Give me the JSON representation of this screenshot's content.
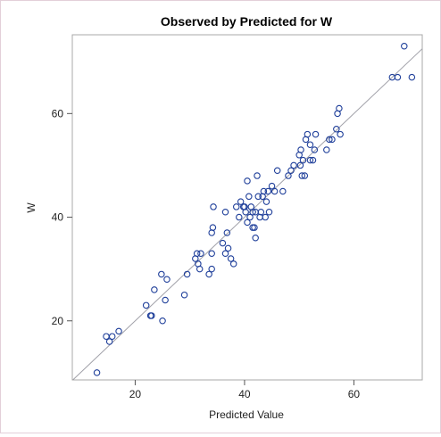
{
  "chart_data": {
    "type": "scatter",
    "title": "Observed by Predicted for W",
    "xlabel": "Predicted Value",
    "ylabel": "W",
    "xlim": [
      8.5,
      72.5
    ],
    "ylim": [
      8.6,
      75.2
    ],
    "xticks": [
      20,
      40,
      60
    ],
    "yticks": [
      20,
      40,
      60
    ],
    "reference_line": "y = x",
    "grid": false,
    "colors": {
      "marker": "#1f3f9a",
      "line": "#a0a0a8",
      "frame": "#a8a8a8"
    },
    "points": [
      [
        13,
        10
      ],
      [
        14.7,
        17
      ],
      [
        15.3,
        16
      ],
      [
        15.8,
        17
      ],
      [
        17,
        18
      ],
      [
        22,
        23
      ],
      [
        22.8,
        21
      ],
      [
        23,
        21
      ],
      [
        23.5,
        26
      ],
      [
        24.8,
        29
      ],
      [
        25,
        20
      ],
      [
        25.5,
        24
      ],
      [
        25.8,
        28
      ],
      [
        29,
        25
      ],
      [
        29.5,
        29
      ],
      [
        31,
        32
      ],
      [
        31.3,
        33
      ],
      [
        31.5,
        31
      ],
      [
        31.8,
        30
      ],
      [
        32,
        33
      ],
      [
        33.5,
        29
      ],
      [
        34,
        30
      ],
      [
        34,
        33
      ],
      [
        34,
        37
      ],
      [
        34.2,
        38
      ],
      [
        34.3,
        42
      ],
      [
        36,
        35
      ],
      [
        36.5,
        33
      ],
      [
        36.5,
        41
      ],
      [
        36.8,
        37
      ],
      [
        37,
        34
      ],
      [
        37.5,
        32
      ],
      [
        38,
        31
      ],
      [
        38.5,
        42
      ],
      [
        39,
        40
      ],
      [
        39.3,
        43
      ],
      [
        39.8,
        42
      ],
      [
        40,
        42
      ],
      [
        40.2,
        41
      ],
      [
        40.5,
        39
      ],
      [
        40.5,
        47
      ],
      [
        40.8,
        44
      ],
      [
        41,
        40
      ],
      [
        41.2,
        42
      ],
      [
        41.5,
        41
      ],
      [
        41.5,
        38
      ],
      [
        41.8,
        38
      ],
      [
        42,
        36
      ],
      [
        42,
        41
      ],
      [
        42.3,
        48
      ],
      [
        42.5,
        44
      ],
      [
        42.8,
        40
      ],
      [
        43,
        41
      ],
      [
        43.3,
        44
      ],
      [
        43.5,
        45
      ],
      [
        43.8,
        40
      ],
      [
        44,
        43
      ],
      [
        44.3,
        45
      ],
      [
        44.5,
        41
      ],
      [
        45,
        46
      ],
      [
        45.5,
        45
      ],
      [
        46,
        49
      ],
      [
        47,
        45
      ],
      [
        48,
        48
      ],
      [
        48.5,
        49
      ],
      [
        49,
        50
      ],
      [
        50,
        52
      ],
      [
        50.2,
        50
      ],
      [
        50.3,
        53
      ],
      [
        50.5,
        48
      ],
      [
        50.7,
        51
      ],
      [
        51,
        48
      ],
      [
        51.2,
        55
      ],
      [
        51.5,
        56
      ],
      [
        52,
        54
      ],
      [
        52,
        51
      ],
      [
        52.5,
        51
      ],
      [
        52.8,
        53
      ],
      [
        53,
        56
      ],
      [
        55,
        53
      ],
      [
        55.5,
        55
      ],
      [
        56,
        55
      ],
      [
        56.8,
        57
      ],
      [
        57,
        60
      ],
      [
        57.3,
        61
      ],
      [
        57.5,
        56
      ],
      [
        67,
        67
      ],
      [
        68,
        67
      ],
      [
        69.2,
        73
      ],
      [
        70.6,
        67
      ]
    ]
  }
}
